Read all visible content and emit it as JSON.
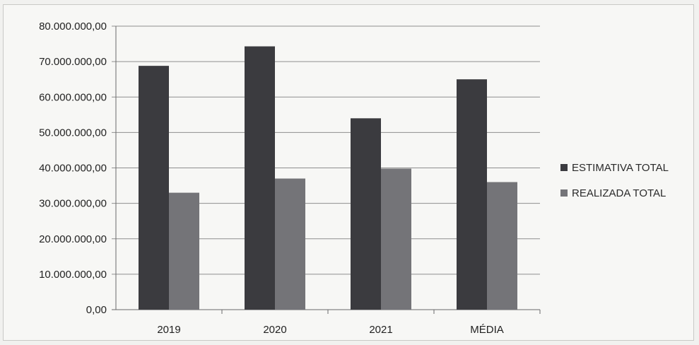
{
  "chart_data": {
    "type": "bar",
    "title": "",
    "xlabel": "",
    "ylabel": "",
    "categories": [
      "2019",
      "2020",
      "2021",
      "MÉDIA"
    ],
    "series": [
      {
        "name": "ESTIMATIVA TOTAL",
        "color": "#3b3b3f",
        "values": [
          68800000,
          74300000,
          54000000,
          65000000
        ]
      },
      {
        "name": "REALIZADA TOTAL",
        "color": "#747478",
        "values": [
          33000000,
          37000000,
          39800000,
          36000000
        ]
      }
    ],
    "ylim": [
      0,
      80000000
    ],
    "yticks": [
      0,
      10000000,
      20000000,
      30000000,
      40000000,
      50000000,
      60000000,
      70000000,
      80000000
    ],
    "ytick_labels": [
      "0,00",
      "10.000.000,00",
      "20.000.000,00",
      "30.000.000,00",
      "40.000.000,00",
      "50.000.000,00",
      "60.000.000,00",
      "70.000.000,00",
      "80.000.000,00"
    ],
    "grid": "horizontal",
    "legend_position": "right"
  }
}
